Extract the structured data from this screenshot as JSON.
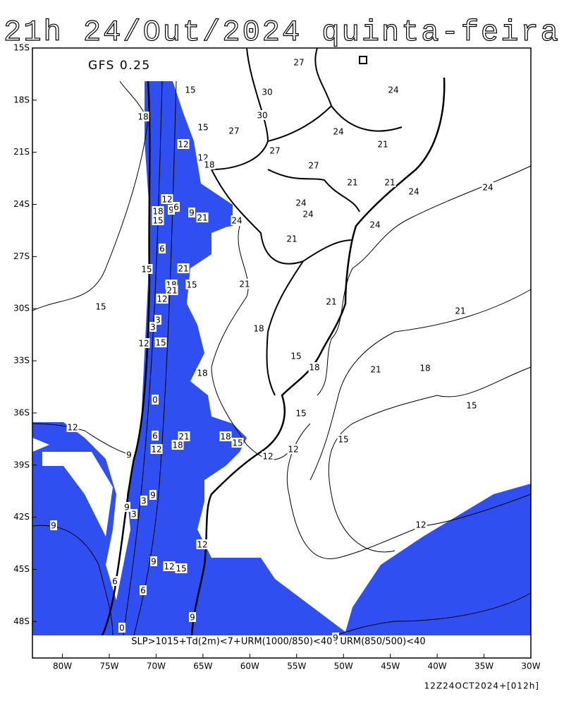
{
  "header": {
    "title": "21h 24/Out/2024 quinta-feira"
  },
  "map": {
    "model": "GFS 0.25",
    "xlim": [
      -83.2,
      -30
    ],
    "ylim": [
      -15,
      -50.1
    ],
    "lon_ticks": [
      {
        "value": -80,
        "label": "80W"
      },
      {
        "value": -75,
        "label": "75W"
      },
      {
        "value": -70,
        "label": "70W"
      },
      {
        "value": -65,
        "label": "65W"
      },
      {
        "value": -60,
        "label": "60W"
      },
      {
        "value": -55,
        "label": "55W"
      },
      {
        "value": -50,
        "label": "50W"
      },
      {
        "value": -45,
        "label": "45W"
      },
      {
        "value": -40,
        "label": "40W"
      },
      {
        "value": -35,
        "label": "35W"
      },
      {
        "value": -30,
        "label": "30W"
      }
    ],
    "lat_ticks": [
      {
        "value": -15,
        "label": "15S"
      },
      {
        "value": -18,
        "label": "18S"
      },
      {
        "value": -21,
        "label": "21S"
      },
      {
        "value": -24,
        "label": "24S"
      },
      {
        "value": -27,
        "label": "27S"
      },
      {
        "value": -30,
        "label": "30S"
      },
      {
        "value": -33,
        "label": "33S"
      },
      {
        "value": -36,
        "label": "36S"
      },
      {
        "value": -39,
        "label": "39S"
      },
      {
        "value": -42,
        "label": "42S"
      },
      {
        "value": -45,
        "label": "45S"
      },
      {
        "value": -48,
        "label": "48S"
      }
    ],
    "contour_labels": [
      27,
      24,
      30,
      15,
      15,
      30,
      27,
      18,
      24,
      21,
      12,
      12,
      18,
      27,
      27,
      21,
      21,
      24,
      24,
      12,
      18,
      9,
      6,
      9,
      21,
      24,
      24,
      24,
      24,
      15,
      21,
      6,
      21,
      15,
      18,
      21,
      15,
      12,
      21,
      15,
      21,
      21,
      3,
      3,
      18,
      12,
      15,
      15,
      18,
      18,
      21,
      18,
      0,
      15,
      15,
      12,
      6,
      21,
      18,
      15,
      12,
      18,
      15,
      12,
      12,
      9,
      9,
      3,
      9,
      3,
      9,
      12,
      12,
      9,
      12,
      15,
      6,
      6,
      9,
      0,
      9
    ],
    "criteria": "SLP>1015+Td(2m)<7+URM(1000/850)<40+URM(850/500)<40",
    "valid": "12Z24OCT2024+[012h]"
  }
}
